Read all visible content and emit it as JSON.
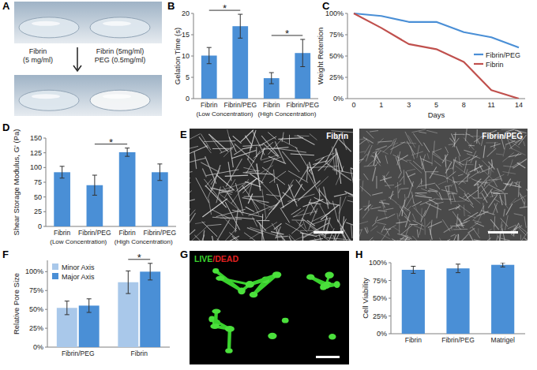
{
  "chart_data": [
    {
      "panel_label": "B",
      "type": "bar",
      "ylabel": "Gelation Time (s)",
      "categories": [
        "Fibrin",
        "Fibrin/PEG",
        "Fibrin",
        "Fibrin/PEG"
      ],
      "group_labels": [
        "(Low Concentration)",
        "(High Concentration)"
      ],
      "values": [
        10.1,
        17.0,
        4.8,
        10.7
      ],
      "errors": [
        1.9,
        2.8,
        1.3,
        3.2
      ],
      "color": "#4a8fd6",
      "ylim": [
        0,
        20
      ],
      "yticks": [
        0,
        5,
        10,
        15,
        20
      ],
      "annotations": [
        {
          "text": "*",
          "from": 0,
          "to": 1
        },
        {
          "text": "*",
          "from": 2,
          "to": 3
        }
      ]
    },
    {
      "panel_label": "C",
      "type": "line",
      "ylabel": "Weight Retention",
      "xlabel": "Days",
      "categories": [
        "0",
        "1",
        "3",
        "5",
        "8",
        "11",
        "14"
      ],
      "series": [
        {
          "name": "Fibrin/PEG",
          "color": "#4a8fd6",
          "values": [
            100,
            97,
            90,
            90,
            78,
            72,
            60
          ]
        },
        {
          "name": "Fibrin",
          "color": "#c0504d",
          "values": [
            100,
            83,
            64,
            58,
            43,
            10,
            0
          ]
        }
      ],
      "ylim": [
        0,
        100
      ],
      "yticks": [
        {
          "value": 0,
          "label": "0%"
        },
        {
          "value": 25,
          "label": "25%"
        },
        {
          "value": 50,
          "label": "50%"
        },
        {
          "value": 75,
          "label": "75%"
        },
        {
          "value": 100,
          "label": "100%"
        }
      ],
      "legend": "right"
    },
    {
      "panel_label": "D",
      "type": "bar",
      "ylabel": "Shear Storage Modulus, G' (Pa)",
      "categories": [
        "Fibrin",
        "Fibrin/PEG",
        "Fibrin",
        "Fibrin/PEG"
      ],
      "group_labels": [
        "(Low Concentration)",
        "(High Concentration)"
      ],
      "values": [
        92,
        70,
        126,
        92
      ],
      "errors": [
        10,
        17,
        7,
        14
      ],
      "color": "#4a8fd6",
      "ylim": [
        0,
        150
      ],
      "yticks": [
        0,
        25,
        50,
        75,
        100,
        125,
        150
      ],
      "annotations": [
        {
          "text": "*",
          "from": 1,
          "to": 2
        }
      ]
    },
    {
      "panel_label": "F",
      "type": "bar",
      "ylabel": "Relative Pore Size",
      "categories": [
        "Fibrin/PEG",
        "Fibrin"
      ],
      "series": [
        {
          "name": "Minor Axis",
          "color": "#a9c8ea",
          "values": [
            52,
            86
          ],
          "errors": [
            9,
            15
          ]
        },
        {
          "name": "Major Axis",
          "color": "#4a8fd6",
          "values": [
            55,
            100
          ],
          "errors": [
            9,
            11
          ]
        }
      ],
      "ylim": [
        0,
        115
      ],
      "yticks": [
        {
          "value": 0,
          "label": "0%"
        },
        {
          "value": 25,
          "label": "25%"
        },
        {
          "value": 50,
          "label": "50%"
        },
        {
          "value": 75,
          "label": "75%"
        },
        {
          "value": 100,
          "label": "100%"
        }
      ],
      "legend": "top-left",
      "annotations": [
        {
          "text": "*",
          "category": 1
        }
      ]
    },
    {
      "panel_label": "H",
      "type": "bar",
      "ylabel": "Cell Viability",
      "categories": [
        "Fibrin",
        "Fibrin/PEG",
        "Matrigel"
      ],
      "values": [
        90,
        92,
        97
      ],
      "errors": [
        5,
        6,
        3
      ],
      "color": "#4a8fd6",
      "ylim": [
        0,
        100
      ],
      "yticks": [
        {
          "value": 0,
          "label": "0%"
        },
        {
          "value": 25,
          "label": "25%"
        },
        {
          "value": 50,
          "label": "50%"
        },
        {
          "value": 75,
          "label": "75%"
        },
        {
          "value": 100,
          "label": "100%"
        }
      ]
    }
  ],
  "image_panels": [
    {
      "panel_label": "A",
      "captions": [
        [
          "Fibrin",
          "(5 mg/ml)"
        ],
        [
          "Fibrin (5mg/ml)",
          "PEG (0.5mg/ml)"
        ]
      ]
    },
    {
      "panel_label": "E",
      "captions": [
        "Fibrin",
        "Fibrin/PEG"
      ]
    },
    {
      "panel_label": "G",
      "caption": [
        "LIVE",
        "/DEAD"
      ]
    }
  ]
}
